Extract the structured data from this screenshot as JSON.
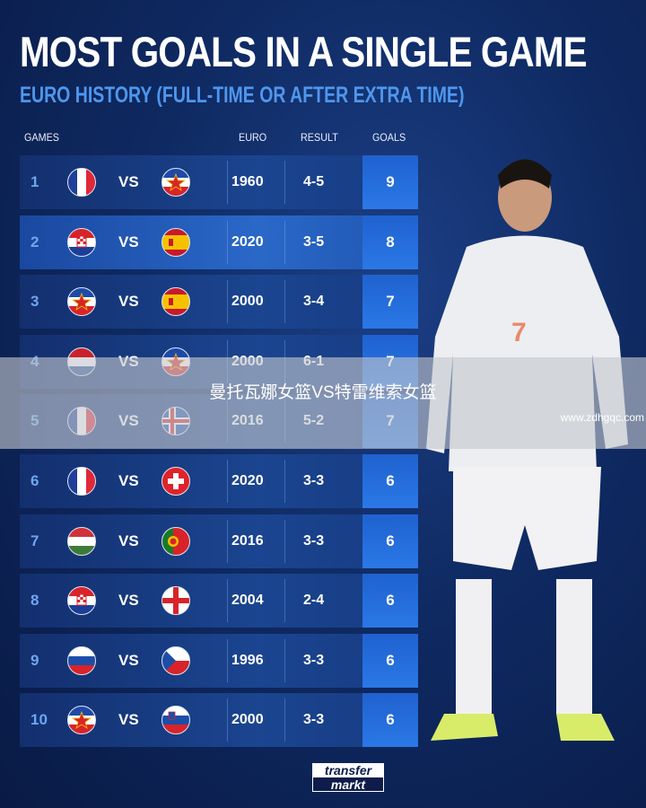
{
  "title": "MOST GOALS IN A SINGLE GAME",
  "subtitle": "EURO HISTORY (FULL-TIME OR AFTER EXTRA TIME)",
  "headers": {
    "games": "GAMES",
    "euro": "EURO",
    "result": "RESULT",
    "goals": "GOALS"
  },
  "vs": "VS",
  "rows": [
    {
      "rank": "1",
      "home": "france",
      "away": "yugoslavia",
      "euro": "1960",
      "result": "4-5",
      "goals": "9"
    },
    {
      "rank": "2",
      "home": "croatia",
      "away": "spain",
      "euro": "2020",
      "result": "3-5",
      "goals": "8"
    },
    {
      "rank": "3",
      "home": "yugoslavia",
      "away": "spain",
      "euro": "2000",
      "result": "3-4",
      "goals": "7"
    },
    {
      "rank": "4",
      "home": "netherlands",
      "away": "yugoslavia",
      "euro": "2000",
      "result": "6-1",
      "goals": "7"
    },
    {
      "rank": "5",
      "home": "france",
      "away": "iceland",
      "euro": "2016",
      "result": "5-2",
      "goals": "7"
    },
    {
      "rank": "6",
      "home": "france",
      "away": "switzerland",
      "euro": "2020",
      "result": "3-3",
      "goals": "6"
    },
    {
      "rank": "7",
      "home": "hungary",
      "away": "portugal",
      "euro": "2016",
      "result": "3-3",
      "goals": "6"
    },
    {
      "rank": "8",
      "home": "croatia",
      "away": "england",
      "euro": "2004",
      "result": "2-4",
      "goals": "6"
    },
    {
      "rank": "9",
      "home": "russia",
      "away": "czech-republic",
      "euro": "1996",
      "result": "3-3",
      "goals": "6"
    },
    {
      "rank": "10",
      "home": "yugoslavia",
      "away": "slovenia",
      "euro": "2000",
      "result": "3-3",
      "goals": "6"
    }
  ],
  "overlay": {
    "text": "曼托瓦娜女篮VS特雷维索女篮",
    "watermark": "www.zdhgqc.com"
  },
  "logo": {
    "line1": "transfer",
    "line2": "markt"
  },
  "colors": {
    "accent": "#4f97ee",
    "goals_box": "#2a78e6",
    "background": "#0f2a62"
  }
}
